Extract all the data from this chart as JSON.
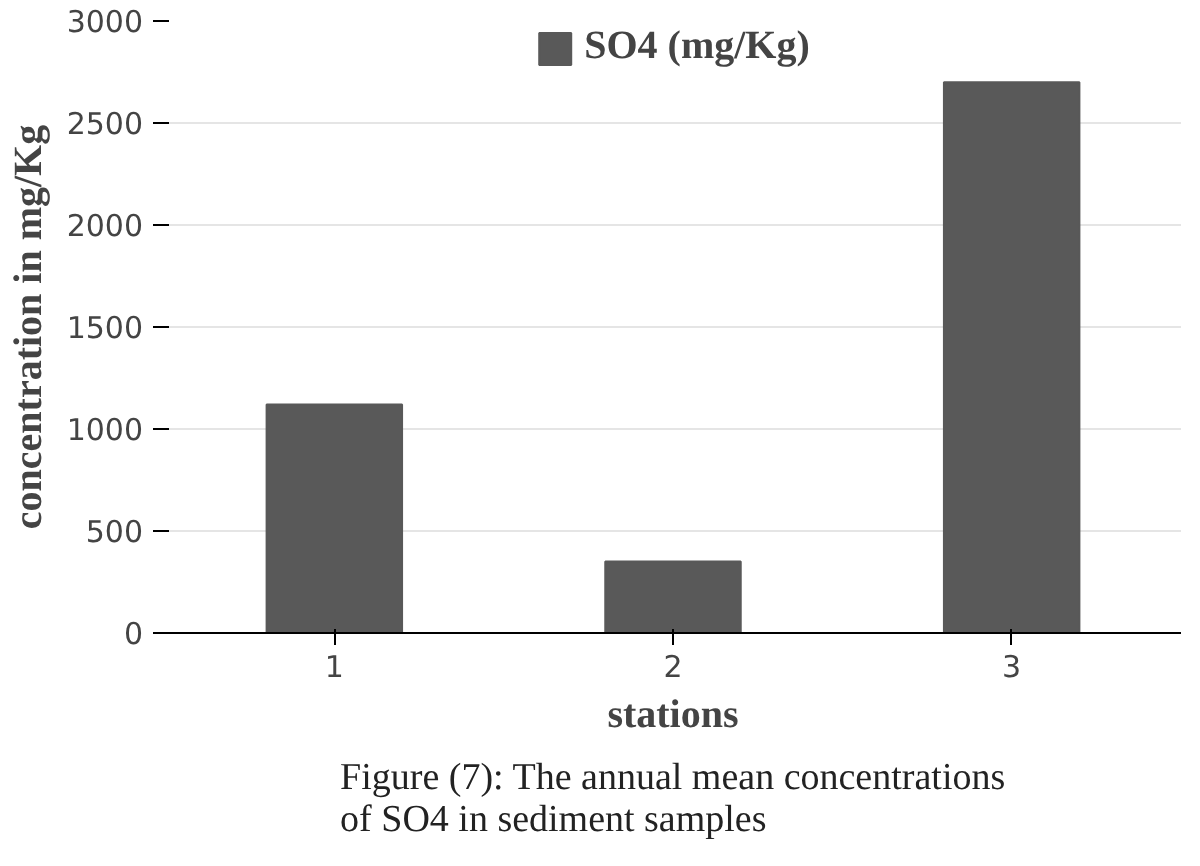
{
  "chart_data": {
    "type": "bar",
    "xlabel": "stations",
    "ylabel": "concentration in mg/Kg",
    "categories": [
      "1",
      "2",
      "3"
    ],
    "series": [
      {
        "name": "SO4 (mg/Kg)",
        "color": "#595959",
        "values": [
          1120,
          350,
          2700
        ]
      }
    ],
    "ylim": [
      0,
      3000
    ],
    "yticks": [
      0,
      500,
      1000,
      1500,
      2000,
      2500,
      3000
    ],
    "grid": "y",
    "legend": "top",
    "annotations": [
      "Figure (7): The annual mean concentrations of SO4 in sediment samples"
    ]
  }
}
